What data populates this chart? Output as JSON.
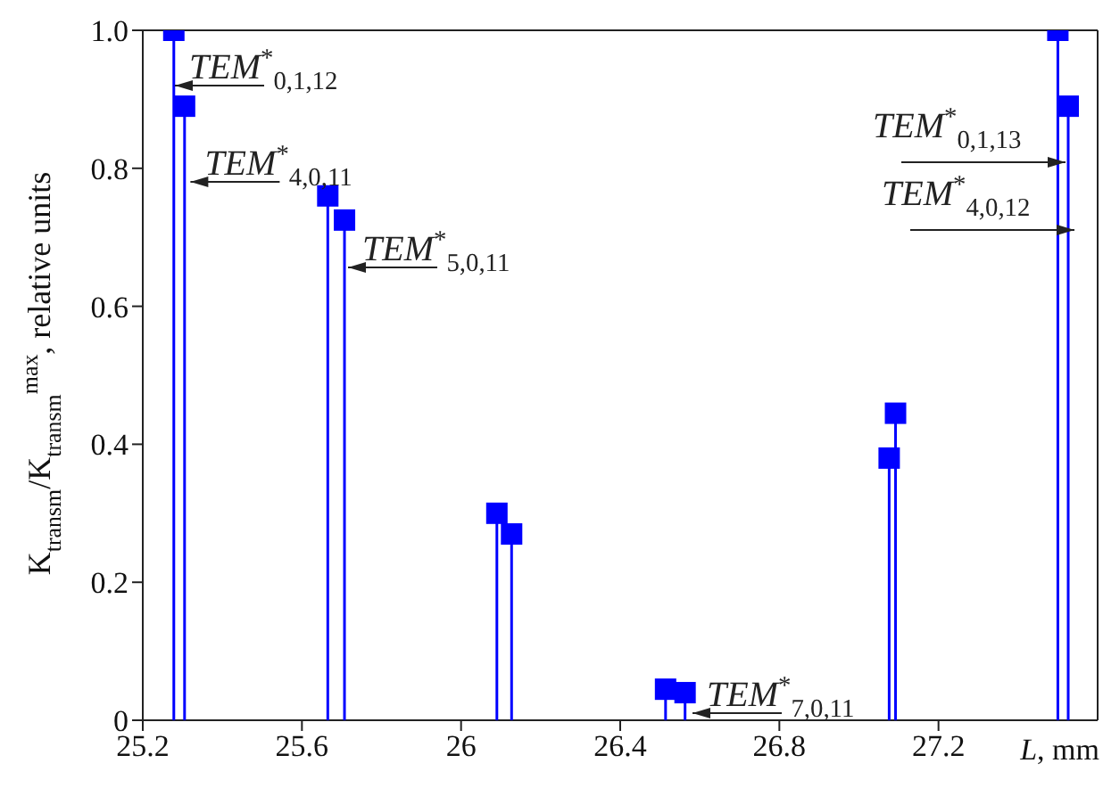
{
  "chart_data": {
    "type": "lollipop",
    "xlabel": "L, mm",
    "ylabel": "K$_{transm}$/K$_{transm}$$^{max}$, relative units",
    "x": [
      25.278,
      25.305,
      25.665,
      25.707,
      26.09,
      26.127,
      26.514,
      26.563,
      27.076,
      27.092,
      27.5,
      27.526
    ],
    "series": [
      {
        "color": "#0000ff",
        "values": [
          1.0,
          0.89,
          0.76,
          0.725,
          0.3,
          0.27,
          0.045,
          0.04,
          0.38,
          0.445,
          1.0,
          0.89
        ]
      }
    ],
    "marker": "square",
    "xlim": [
      25.2,
      27.6
    ],
    "xticks": [
      25.2,
      25.6,
      26.0,
      26.4,
      26.8,
      27.2
    ],
    "ylim": [
      0,
      1
    ],
    "yticks": [
      0,
      0.2,
      0.4,
      0.6,
      0.8,
      {
        "value": 1,
        "label": "1.0"
      }
    ],
    "annotations": [
      "TEM$^{*}$$_{0,1,12}$",
      "TEM$^{*}$$_{4,0,11}$",
      "TEM$^{*}$$_{5,0,11}$",
      "TEM$^{*}$$_{7,0,11}$",
      "TEM$^{*}$$_{0,1,13}$",
      "TEM$^{*}$$_{4,0,12}$"
    ]
  }
}
